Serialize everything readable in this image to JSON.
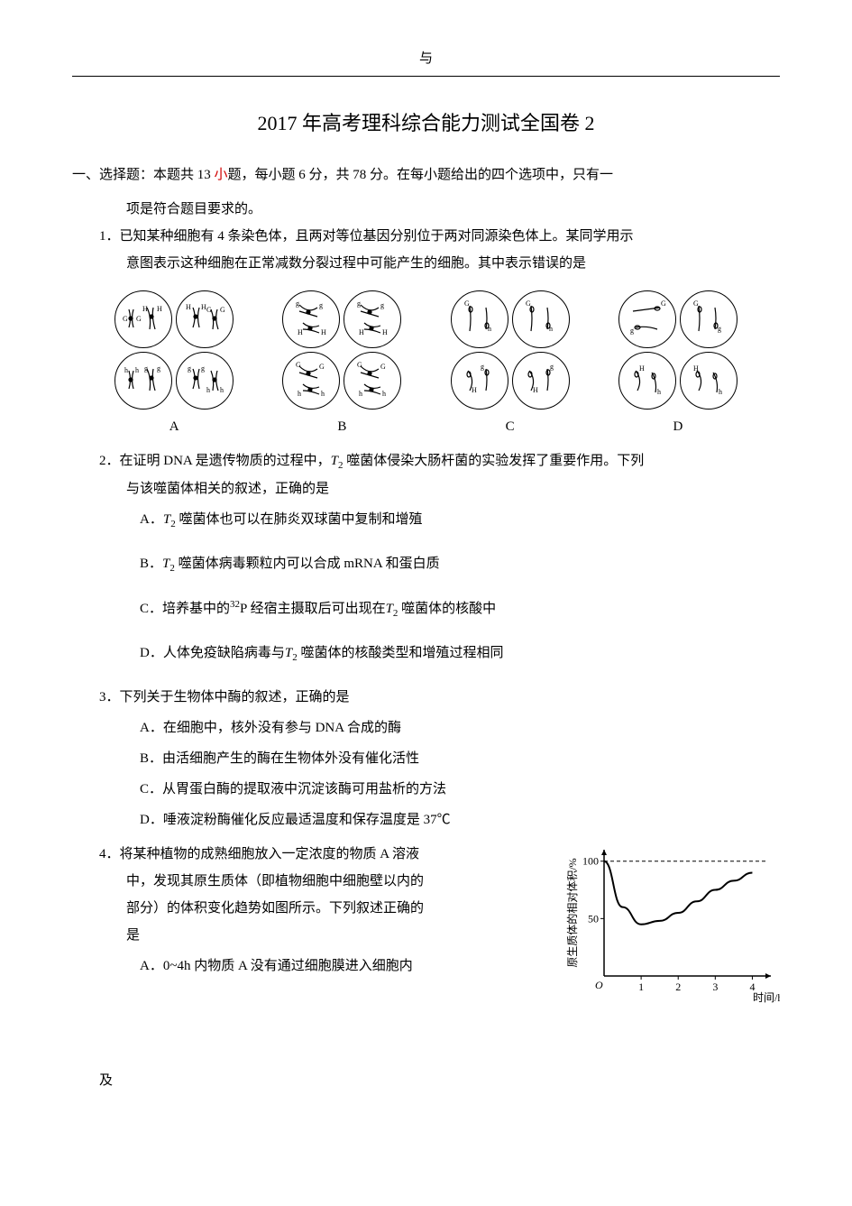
{
  "header_top": "与",
  "footer_bottom": "及",
  "title": "2017 年高考理科综合能力测试全国卷 2",
  "section1": {
    "line1": "一、选择题：本题共 13 ",
    "red1": "小",
    "line1b": "题，每小题 6 分，共 78 分。在每小题给出的四个选项中，只有一",
    "line2": "项是符合题目要求的。"
  },
  "q1": {
    "line1": "1．已知某种细胞有 4 条染色体，且两对等位基因分别位于两对同源染色体上。某同学用示",
    "line2": "意图表示这种细胞在正常减数分裂过程中可能产生的细胞。其中表示错误的是",
    "labels": [
      "A",
      "B",
      "C",
      "D"
    ],
    "diagrams": {
      "type": "cell-diagrams",
      "description": "Four groups of circular cell diagrams showing chromosome arrangements with gene labels G, g, H, h"
    }
  },
  "q2": {
    "line1_a": "2．在证明 DNA 是遗传物质的过程中，",
    "line1_b": " 噬菌体侵染大肠杆菌的实验发挥了重要作用。下列",
    "line2": "与该噬菌体相关的叙述，正确的是",
    "optA_a": "A．",
    "optA_b": " 噬菌体也可以在肺炎双球菌中复制和增殖",
    "optB_a": "B．",
    "optB_b": " 噬菌体病毒颗粒内可以合成 mRNA 和蛋白质",
    "optC_a": "C．培养基中的",
    "optC_b": " 经宿主摄取后可出现在",
    "optC_c": " 噬菌体的核酸中",
    "optD_a": "D．人体免疫缺陷病毒与",
    "optD_b": " 噬菌体的核酸类型和增殖过程相同",
    "T2": "T",
    "sub2": "2",
    "P32": "P",
    "sup32": "32"
  },
  "q3": {
    "line1": "3．下列关于生物体中酶的叙述，正确的是",
    "optA": "A．在细胞中，核外没有参与 DNA 合成的酶",
    "optB": "B．由活细胞产生的酶在生物体外没有催化活性",
    "optC": "C．从胃蛋白酶的提取液中沉淀该酶可用盐析的方法",
    "optD": "D．唾液淀粉酶催化反应最适温度和保存温度是 37℃"
  },
  "q4": {
    "line1": "4．将某种植物的成熟细胞放入一定浓度的物质 A 溶液",
    "line2": "中，发现其原生质体（即植物细胞中细胞壁以内的",
    "line3": "部分）的体积变化趋势如图所示。下列叙述正确的",
    "line4": "是",
    "optA": "A．0~4h 内物质 A 没有通过细胞膜进入细胞内",
    "chart": {
      "type": "line",
      "x_label": "时间/h",
      "y_label": "原生质体的相对体积/%",
      "y_values": [
        100,
        50
      ],
      "x_values": [
        1,
        2,
        3,
        4
      ],
      "ylim": [
        0,
        110
      ],
      "xlim": [
        0,
        4.5
      ],
      "dashed_line_y": 100,
      "curve_description": "starts at 100, dips to ~45 around x=1, rises back toward ~90 at x=4",
      "curve_points": [
        [
          0,
          100
        ],
        [
          0.5,
          60
        ],
        [
          1,
          45
        ],
        [
          1.5,
          48
        ],
        [
          2,
          55
        ],
        [
          2.5,
          65
        ],
        [
          3,
          75
        ],
        [
          3.5,
          83
        ],
        [
          4,
          90
        ]
      ],
      "line_color": "#000000",
      "background_color": "#f8f8f6",
      "axis_color": "#000000",
      "font_size": 12
    }
  }
}
